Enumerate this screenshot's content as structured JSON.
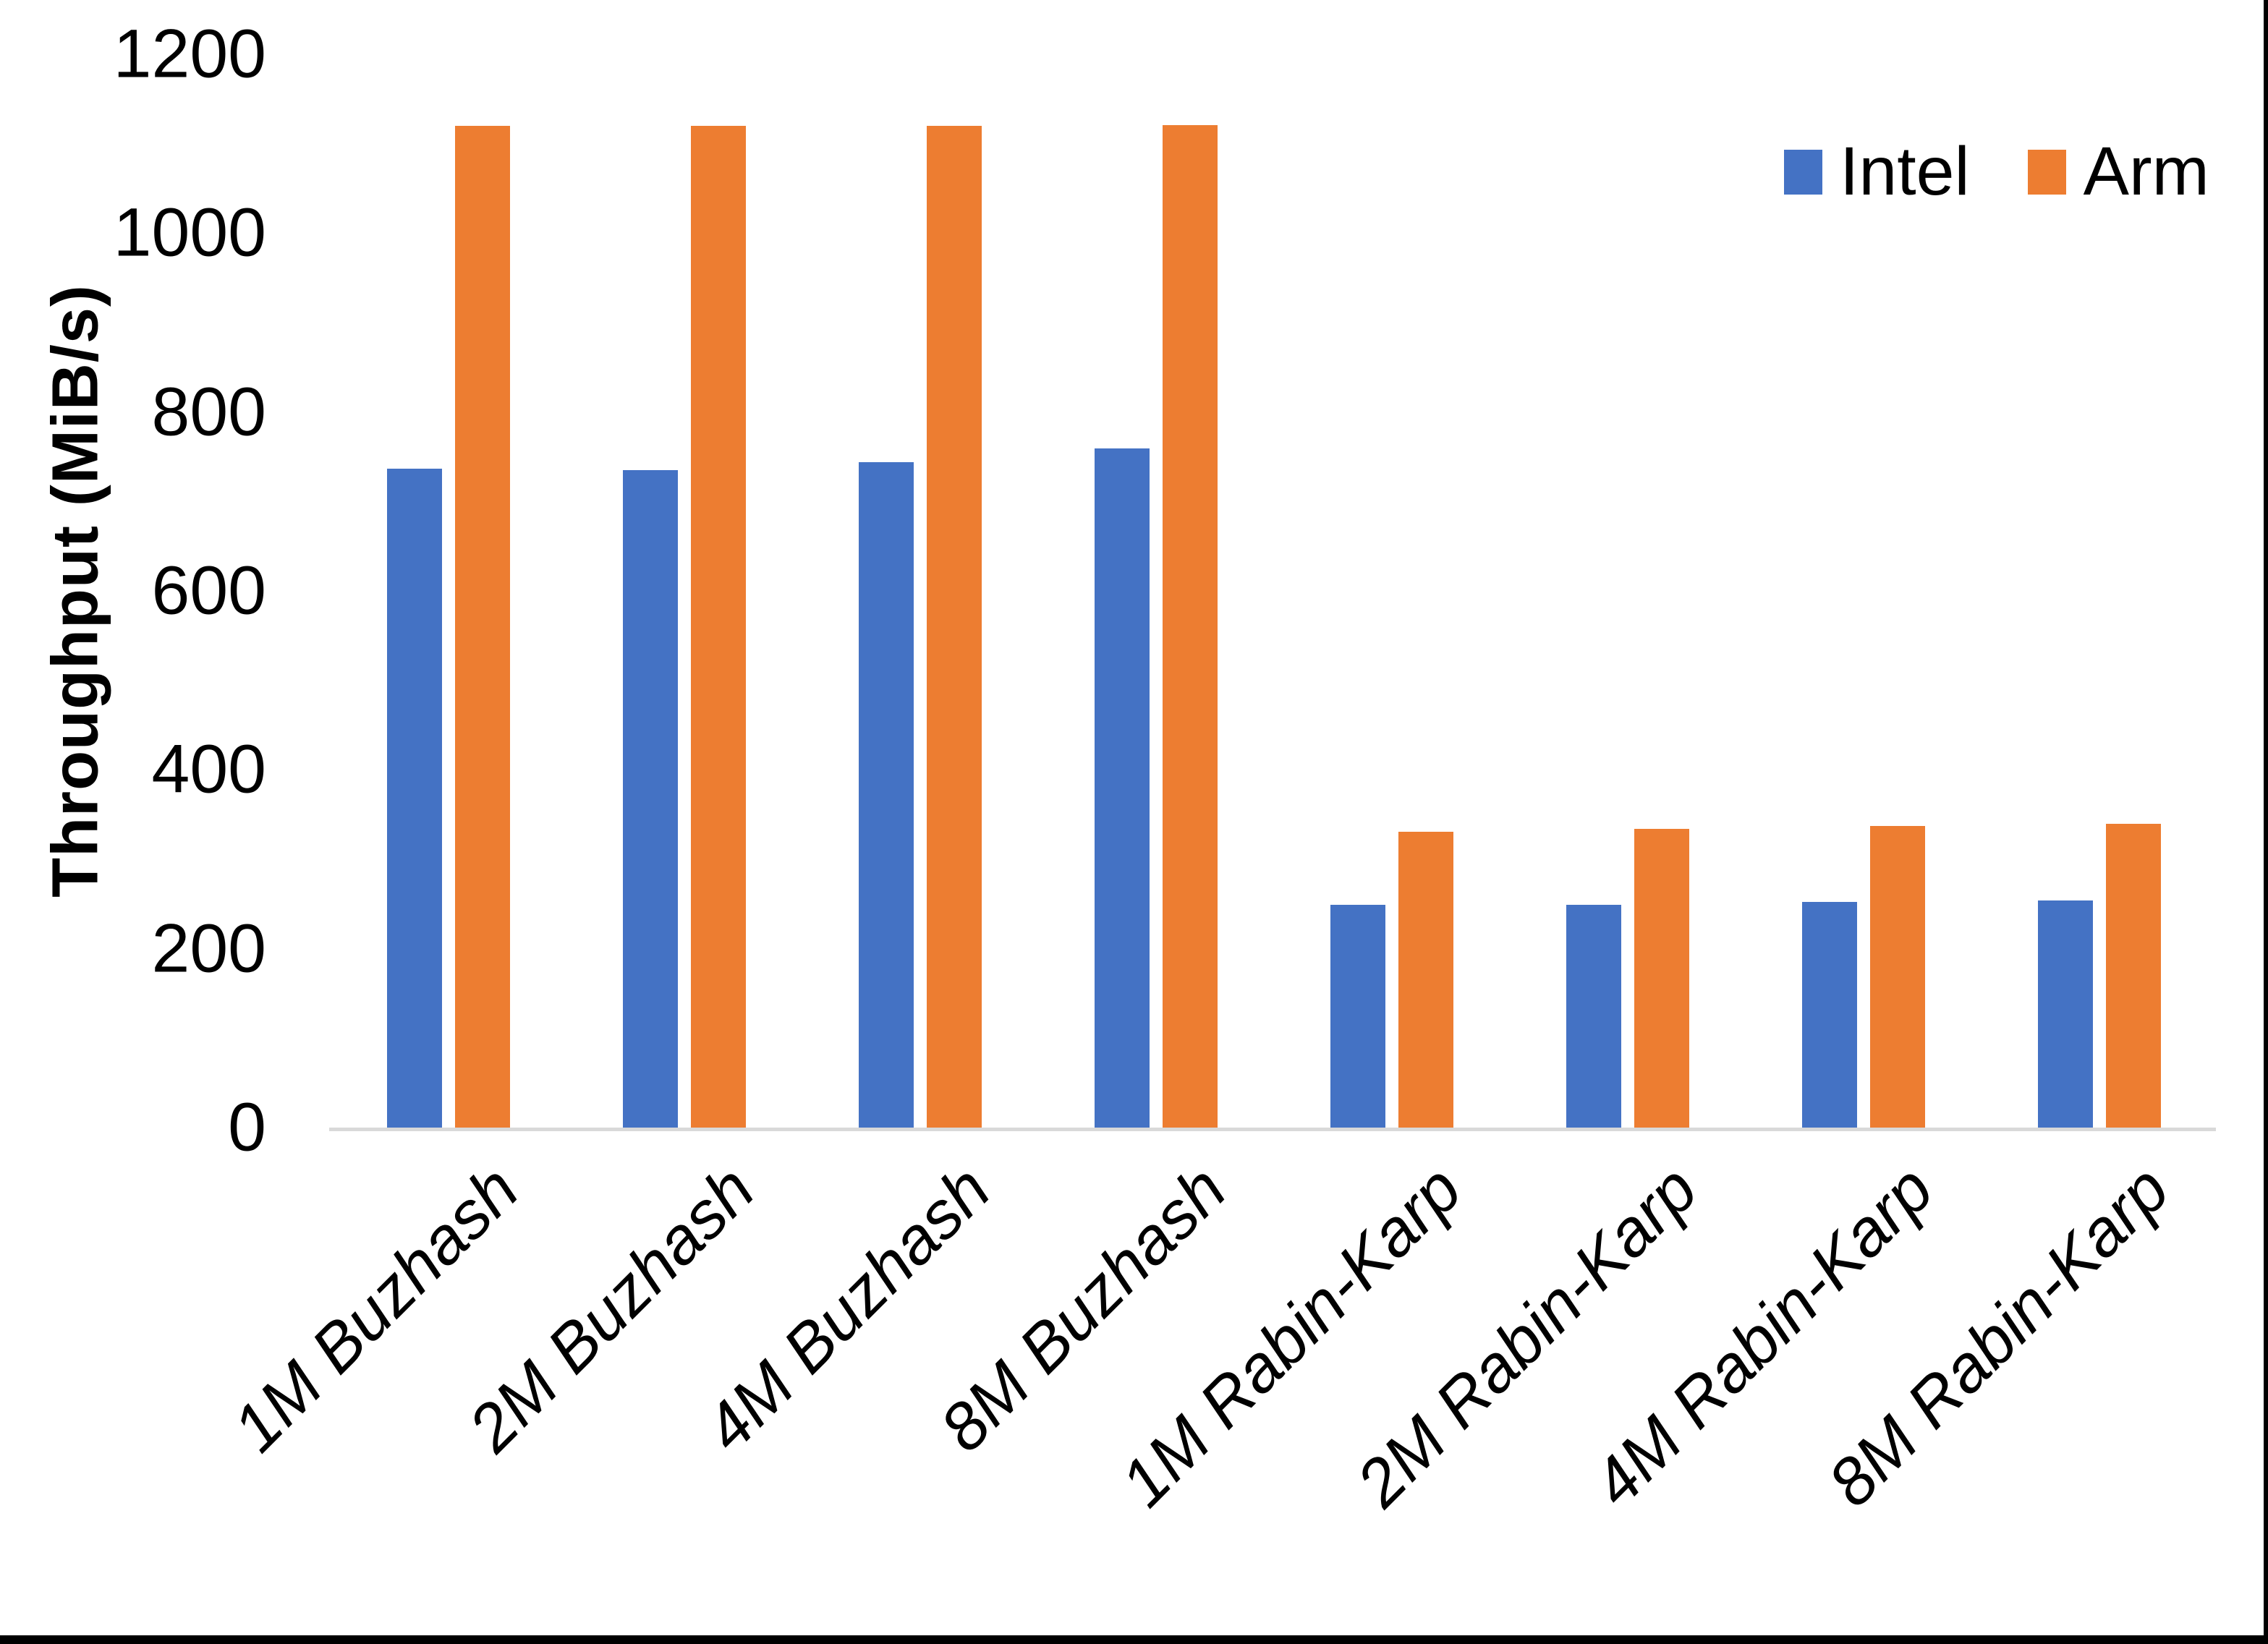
{
  "chart_data": {
    "type": "bar",
    "title": "",
    "xlabel": "",
    "ylabel": "Throughput (MiB/s)",
    "categories": [
      "1M Buzhash",
      "2M Buzhash",
      "4M Buzhash",
      "8M Buzhash",
      "1M Rabin-Karp",
      "2M Rabin-Karp",
      "4M Rabin-Karp",
      "8M Rabin-Karp"
    ],
    "series": [
      {
        "name": "Intel",
        "color": "#4472C4",
        "values": [
          737,
          735,
          744,
          759,
          249,
          249,
          252,
          254
        ]
      },
      {
        "name": "Arm",
        "color": "#ED7D31",
        "values": [
          1120,
          1120,
          1120,
          1121,
          331,
          334,
          337,
          340
        ]
      }
    ],
    "ylim": [
      0,
      1200
    ],
    "y_ticks": [
      0,
      200,
      400,
      600,
      800,
      1000,
      1200
    ],
    "grid": false,
    "legend_position": "top-right",
    "axis_line_color": "#D9D9D9",
    "text_color": "#000000",
    "background_color": "#FFFFFF"
  }
}
